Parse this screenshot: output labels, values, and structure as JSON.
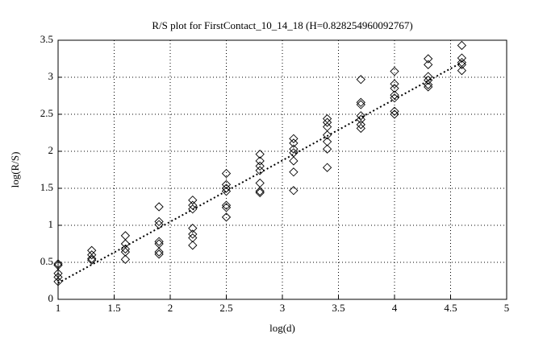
{
  "chart_data": {
    "type": "scatter",
    "title": "R/S plot for FirstContact_10_14_18 (H=0.828254960092767)",
    "x_label": "log(d)",
    "y_label": "log(R/S)",
    "xlim": [
      1,
      5
    ],
    "xticks": [
      1,
      1.5,
      2,
      2.5,
      3,
      3.5,
      4,
      4.5,
      5
    ],
    "ylim": [
      0,
      3.5
    ],
    "yticks": [
      0,
      0.5,
      1,
      1.5,
      2,
      2.5,
      3,
      3.5
    ],
    "grid": true,
    "color": "#000000",
    "x": [
      1,
      1,
      1,
      1,
      1,
      1.3,
      1.3,
      1.3,
      1.3,
      1.6,
      1.6,
      1.6,
      1.6,
      1.6,
      1.9,
      1.9,
      1.9,
      1.9,
      1.9,
      1.9,
      1.9,
      2.2,
      2.2,
      2.2,
      2.2,
      2.2,
      2.2,
      2.2,
      2.5,
      2.5,
      2.5,
      2.5,
      2.5,
      2.5,
      2.5,
      2.8,
      2.8,
      2.8,
      2.8,
      2.8,
      2.8,
      2.8,
      3.1,
      3.1,
      3.1,
      3.1,
      3.1,
      3.1,
      3.1,
      3.4,
      3.4,
      3.4,
      3.4,
      3.4,
      3.4,
      3.4,
      3.7,
      3.7,
      3.7,
      3.7,
      3.7,
      3.7,
      3.7,
      4,
      4,
      4,
      4,
      4,
      4,
      4,
      4.3,
      4.3,
      4.3,
      4.3,
      4.3,
      4.3,
      4.6,
      4.6,
      4.6,
      4.6,
      4.6
    ],
    "y": [
      0.48,
      0.46,
      0.35,
      0.3,
      0.24,
      0.66,
      0.6,
      0.55,
      0.53,
      0.86,
      0.75,
      0.68,
      0.64,
      0.54,
      1.25,
      1.05,
      1.01,
      0.78,
      0.75,
      0.64,
      0.61,
      1.34,
      1.27,
      1.22,
      0.96,
      0.88,
      0.83,
      0.73,
      1.7,
      1.55,
      1.5,
      1.46,
      1.27,
      1.24,
      1.11,
      1.96,
      1.87,
      1.8,
      1.74,
      1.57,
      1.46,
      1.44,
      2.17,
      2.11,
      2.03,
      1.98,
      1.87,
      1.72,
      1.47,
      2.44,
      2.39,
      2.33,
      2.22,
      2.13,
      2.03,
      1.78,
      2.97,
      2.66,
      2.63,
      2.48,
      2.43,
      2.36,
      2.31,
      3.08,
      2.91,
      2.85,
      2.76,
      2.72,
      2.54,
      2.5,
      3.25,
      3.17,
      3.01,
      2.96,
      2.9,
      2.87,
      3.43,
      3.26,
      3.2,
      3.17,
      3.09
    ],
    "fit": {
      "x": [
        1,
        4.6
      ],
      "y": [
        0.22,
        3.2
      ]
    }
  }
}
